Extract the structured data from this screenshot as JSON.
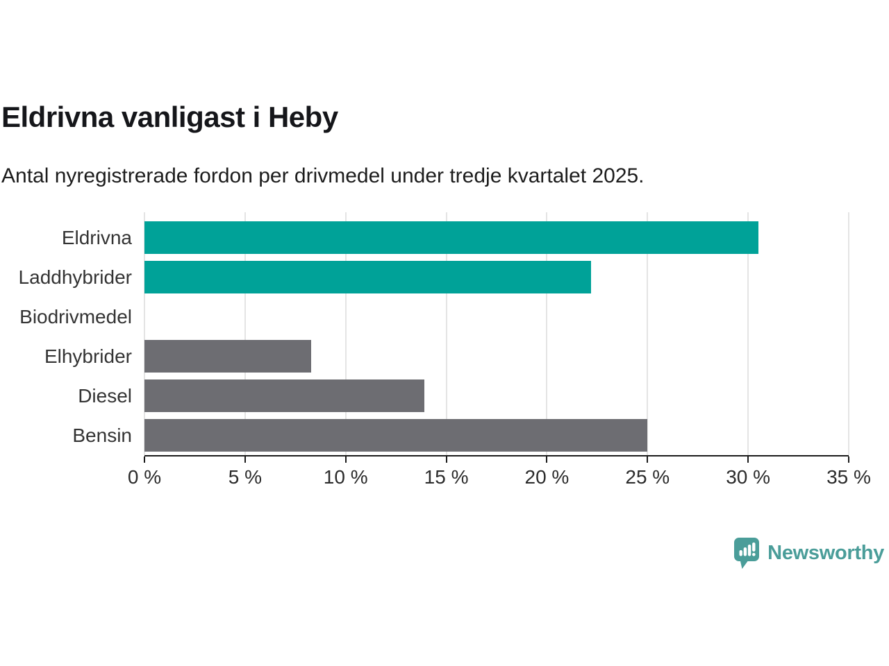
{
  "chart_data": {
    "type": "bar",
    "orientation": "horizontal",
    "title": "Eldrivna vanligast i Heby",
    "subtitle": "Antal nyregistrerade fordon per drivmedel under tredje kvartalet 2025.",
    "categories": [
      "Eldrivna",
      "Laddhybrider",
      "Biodrivmedel",
      "Elhybrider",
      "Diesel",
      "Bensin"
    ],
    "values": [
      30.5,
      22.2,
      0,
      8.3,
      13.9,
      25.0
    ],
    "unit": "%",
    "bar_colors": [
      "#00a298",
      "#00a298",
      "#6d6d72",
      "#6d6d72",
      "#6d6d72",
      "#6d6d72"
    ],
    "xlabel": "",
    "ylabel": "",
    "xlim": [
      0,
      35
    ],
    "xticks": [
      0,
      5,
      10,
      15,
      20,
      25,
      30,
      35
    ],
    "xtick_labels": [
      "0 %",
      "5 %",
      "10 %",
      "15 %",
      "20 %",
      "25 %",
      "30 %",
      "35 %"
    ],
    "grid": true,
    "legend": false
  },
  "colors": {
    "highlight_teal": "#00a298",
    "neutral_gray": "#6d6d72",
    "gridline": "#e4e4e4",
    "axis": "#1a1a1a",
    "logo_teal": "#4a9d99"
  },
  "branding": {
    "logo_text": "Newsworthy",
    "logo_icon": "newsworthy-chart-bubble-icon"
  }
}
